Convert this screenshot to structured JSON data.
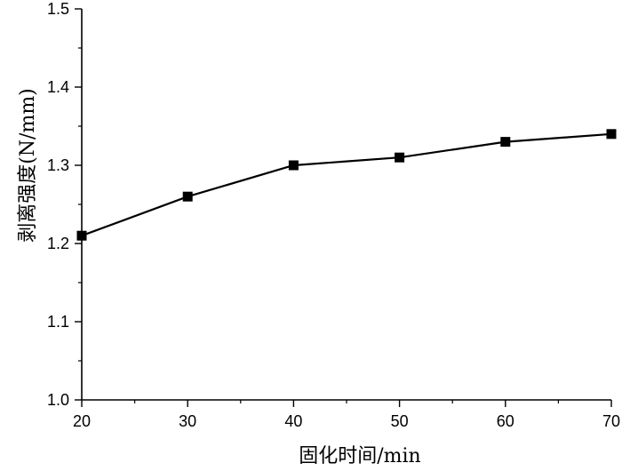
{
  "chart_data": {
    "type": "line",
    "title": "",
    "xlabel": "固化时间/min",
    "ylabel": "剥离强度(N/mm)",
    "x": [
      20,
      30,
      40,
      50,
      60,
      70
    ],
    "series": [
      {
        "name": "",
        "values": [
          1.21,
          1.26,
          1.3,
          1.31,
          1.33,
          1.34
        ]
      }
    ],
    "xlim": [
      20,
      70
    ],
    "ylim": [
      1.0,
      1.5
    ],
    "xticks": [
      20,
      30,
      40,
      50,
      60,
      70
    ],
    "yticks": [
      1.0,
      1.1,
      1.2,
      1.3,
      1.4,
      1.5
    ],
    "xtick_labels": [
      "20",
      "30",
      "40",
      "50",
      "60",
      "70"
    ],
    "ytick_labels": [
      "1.0",
      "1.1",
      "1.2",
      "1.3",
      "1.4",
      "1.5"
    ],
    "grid": false,
    "legend": "none",
    "marker": "square",
    "color": "#000000"
  }
}
